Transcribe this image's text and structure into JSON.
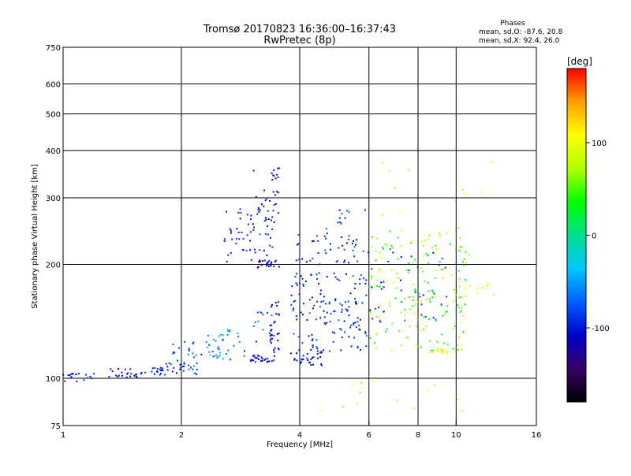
{
  "chart_data": {
    "type": "scatter",
    "title": "Tromsø 20170823 16:36:00–16:37:43",
    "subtitle": "RwPretec (8p)",
    "stats": {
      "heading": "Phases",
      "line_o": "mean, sd,O: -87.6, 20.8",
      "line_x": "mean, sd,X:  92.4, 26.0"
    },
    "xlabel": "Frequency [MHz]",
    "ylabel": "Stationary phase Virtual Height [km]",
    "x_scale": "log",
    "y_scale": "log",
    "xlim": [
      1,
      16
    ],
    "ylim": [
      75,
      750
    ],
    "xticks": [
      1,
      2,
      4,
      6,
      8,
      10,
      16
    ],
    "yticks": [
      75,
      100,
      200,
      300,
      400,
      500,
      600,
      750
    ],
    "grid_x": [
      2,
      4,
      6,
      8,
      10
    ],
    "grid_y": [
      100,
      200,
      300,
      400,
      500,
      600
    ],
    "grid": true,
    "colorbar": {
      "label": "[deg]",
      "range": [
        -180,
        180
      ],
      "ticks": [
        100,
        0,
        -100
      ],
      "colors": [
        "#000000",
        "#3a0066",
        "#0000cc",
        "#0060ff",
        "#00c8ff",
        "#00e090",
        "#00ff00",
        "#b0ff00",
        "#ffff00",
        "#ffa000",
        "#ff0000"
      ]
    },
    "clusters": [
      {
        "f": [
          1.0,
          1.2
        ],
        "h": [
          98,
          103
        ],
        "n": 18,
        "phase": -100,
        "spread": 20
      },
      {
        "f": [
          1.3,
          1.55
        ],
        "h": [
          100,
          106
        ],
        "n": 22,
        "phase": -105,
        "spread": 15
      },
      {
        "f": [
          1.55,
          1.8
        ],
        "h": [
          102,
          108
        ],
        "n": 18,
        "phase": -100,
        "spread": 20
      },
      {
        "f": [
          1.8,
          2.2
        ],
        "h": [
          102,
          110
        ],
        "n": 22,
        "phase": -95,
        "spread": 25
      },
      {
        "f": [
          1.9,
          2.3
        ],
        "h": [
          105,
          128
        ],
        "n": 20,
        "phase": -80,
        "spread": 35
      },
      {
        "f": [
          2.3,
          2.9
        ],
        "h": [
          112,
          135
        ],
        "n": 40,
        "phase": -60,
        "spread": 45
      },
      {
        "f": [
          3.0,
          3.45
        ],
        "h": [
          110,
          115
        ],
        "n": 26,
        "phase": -105,
        "spread": 15
      },
      {
        "f": [
          3.0,
          3.45
        ],
        "h": [
          125,
          150
        ],
        "n": 12,
        "phase": -80,
        "spread": 30
      },
      {
        "f": [
          3.35,
          3.55
        ],
        "h": [
          115,
          160
        ],
        "n": 30,
        "phase": -110,
        "spread": 15
      },
      {
        "f": [
          2.55,
          3.45
        ],
        "h": [
          200,
          280
        ],
        "n": 60,
        "phase": -100,
        "spread": 25
      },
      {
        "f": [
          3.1,
          3.55
        ],
        "h": [
          196,
          205
        ],
        "n": 20,
        "phase": -115,
        "spread": 15
      },
      {
        "f": [
          3.1,
          3.55
        ],
        "h": [
          260,
          315
        ],
        "n": 18,
        "phase": -105,
        "spread": 20
      },
      {
        "f": [
          3.35,
          3.55
        ],
        "h": [
          335,
          360
        ],
        "n": 10,
        "phase": -110,
        "spread": 15
      },
      {
        "f": [
          3.8,
          4.6
        ],
        "h": [
          108,
          118
        ],
        "n": 30,
        "phase": -105,
        "spread": 20
      },
      {
        "f": [
          3.8,
          6.0
        ],
        "h": [
          118,
          190
        ],
        "n": 140,
        "phase": -95,
        "spread": 35
      },
      {
        "f": [
          3.9,
          6.0
        ],
        "h": [
          200,
          240
        ],
        "n": 45,
        "phase": -95,
        "spread": 30
      },
      {
        "f": [
          4.6,
          6.0
        ],
        "h": [
          240,
          280
        ],
        "n": 12,
        "phase": -90,
        "spread": 30
      },
      {
        "f": [
          6.0,
          10.8
        ],
        "h": [
          118,
          250
        ],
        "n": 190,
        "phase": 60,
        "spread": 70
      },
      {
        "f": [
          6.0,
          9.5
        ],
        "h": [
          140,
          220
        ],
        "n": 40,
        "phase": -90,
        "spread": 30
      },
      {
        "f": [
          8.5,
          9.5
        ],
        "h": [
          116,
          120
        ],
        "n": 15,
        "phase": 110,
        "spread": 15
      },
      {
        "f": [
          10.0,
          12.5
        ],
        "h": [
          160,
          180
        ],
        "n": 10,
        "phase": 100,
        "spread": 20
      },
      {
        "f": [
          4.5,
          10.5
        ],
        "h": [
          82,
          100
        ],
        "n": 14,
        "phase": 120,
        "spread": 40
      },
      {
        "f": [
          6.0,
          12.5
        ],
        "h": [
          270,
          390
        ],
        "n": 10,
        "phase": 110,
        "spread": 50
      },
      {
        "f": [
          2.5,
          3.6
        ],
        "h": [
          300,
          460
        ],
        "n": 4,
        "phase": -110,
        "spread": 20
      }
    ]
  }
}
